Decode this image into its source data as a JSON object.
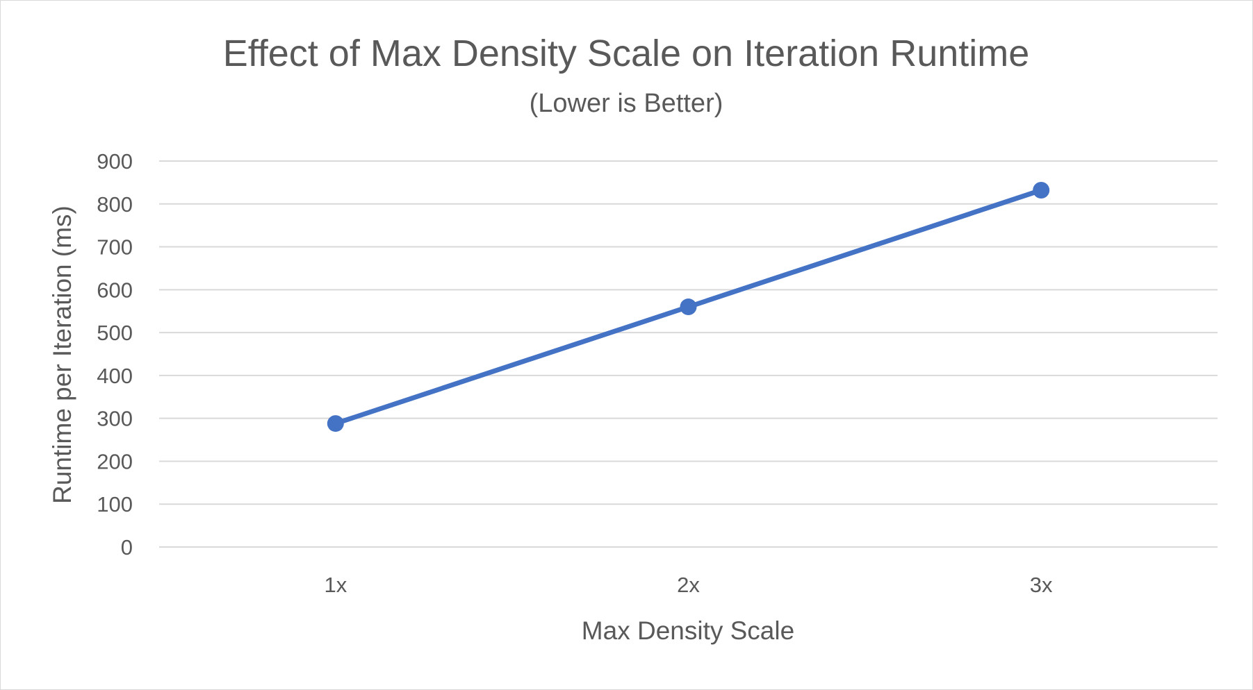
{
  "chart_data": {
    "type": "line",
    "title": "Effect of Max Density Scale on Iteration Runtime",
    "subtitle": "(Lower is Better)",
    "xlabel": "Max Density Scale",
    "ylabel": "Runtime per Iteration (ms)",
    "categories": [
      "1x",
      "2x",
      "3x"
    ],
    "series": [
      {
        "values": [
          288,
          560,
          832
        ],
        "color": "#4472C4"
      }
    ],
    "ylim": [
      0,
      900
    ],
    "yticks": [
      0,
      100,
      200,
      300,
      400,
      500,
      600,
      700,
      800,
      900
    ],
    "grid": true,
    "legend": "none"
  }
}
